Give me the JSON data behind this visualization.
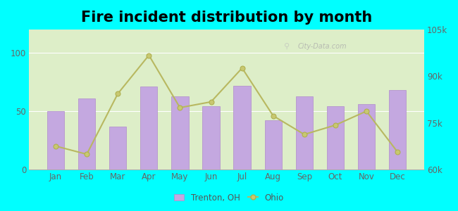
{
  "title": "Fire incident distribution by month",
  "months": [
    "Jan",
    "Feb",
    "Mar",
    "Apr",
    "May",
    "Jun",
    "Jul",
    "Aug",
    "Sep",
    "Oct",
    "Nov",
    "Dec"
  ],
  "trenton_values": [
    50,
    61,
    37,
    71,
    63,
    54,
    72,
    42,
    63,
    54,
    56,
    68
  ],
  "ohio_left_scaled": [
    20,
    13,
    65,
    98,
    53,
    58,
    87,
    46,
    30,
    38,
    50,
    15
  ],
  "bar_color": "#c4a8e0",
  "bar_edge_color": "#b08acc",
  "line_color": "#b8b860",
  "line_marker": "o",
  "line_marker_facecolor": "#c8c870",
  "line_marker_edgecolor": "#b0b050",
  "ylim_left": [
    0,
    120
  ],
  "yticks_left": [
    0,
    50,
    100
  ],
  "yticks_right": [
    60000,
    75000,
    90000,
    105000
  ],
  "ytick_labels_right": [
    "60k",
    "75k",
    "90k",
    "105k"
  ],
  "background_outer": "#00ffff",
  "title_fontsize": 15,
  "watermark": "City-Data.com"
}
